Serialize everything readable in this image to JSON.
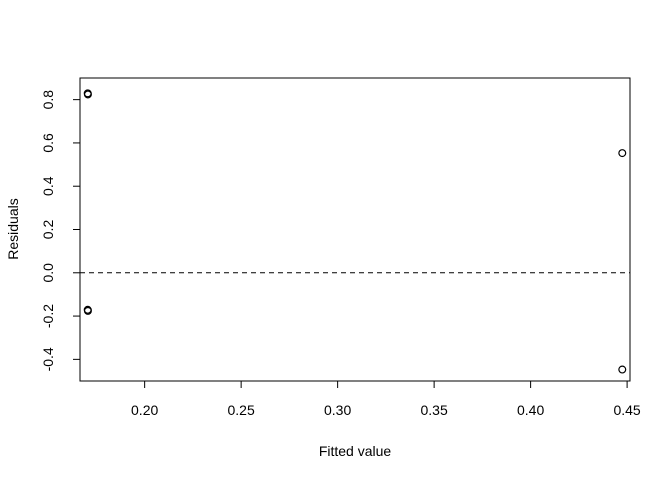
{
  "chart_data": {
    "type": "scatter",
    "title": "",
    "xlabel": "Fitted value",
    "ylabel": "Residuals",
    "xlim": [
      0.1665,
      0.4515
    ],
    "ylim": [
      -0.5,
      0.9
    ],
    "x_ticks": [
      {
        "value": 0.2,
        "label": "0.20"
      },
      {
        "value": 0.25,
        "label": "0.25"
      },
      {
        "value": 0.3,
        "label": "0.30"
      },
      {
        "value": 0.35,
        "label": "0.35"
      },
      {
        "value": 0.4,
        "label": "0.40"
      },
      {
        "value": 0.45,
        "label": "0.45"
      }
    ],
    "y_ticks": [
      {
        "value": -0.4,
        "label": "-0.4"
      },
      {
        "value": -0.2,
        "label": "-0.2"
      },
      {
        "value": 0.0,
        "label": "0.0"
      },
      {
        "value": 0.2,
        "label": "0.2"
      },
      {
        "value": 0.4,
        "label": "0.4"
      },
      {
        "value": 0.6,
        "label": "0.6"
      },
      {
        "value": 0.8,
        "label": "0.8"
      }
    ],
    "reference_line": {
      "y": 0,
      "style": "dashed"
    },
    "points": [
      {
        "x": 0.1705,
        "y": 0.829
      },
      {
        "x": 0.1706,
        "y": 0.824
      },
      {
        "x": 0.1705,
        "y": -0.171
      },
      {
        "x": 0.1706,
        "y": -0.176
      },
      {
        "x": 0.4475,
        "y": 0.553
      },
      {
        "x": 0.4475,
        "y": -0.447
      }
    ],
    "marker": "open-circle",
    "grid": false,
    "box": true
  }
}
